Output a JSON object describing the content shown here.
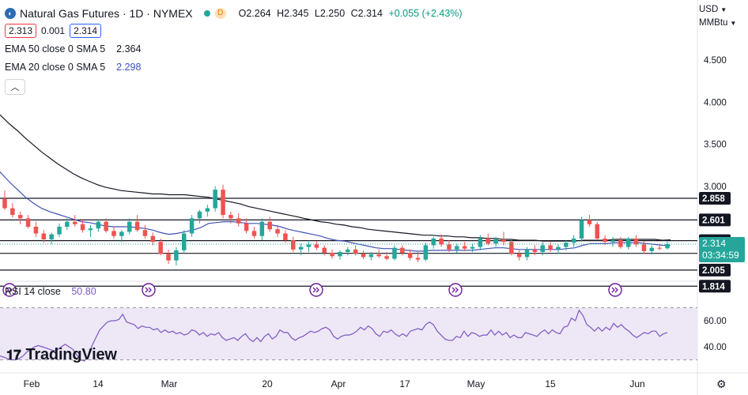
{
  "header": {
    "title": "Natural Gas Futures · 1D · NYMEX",
    "delay_badge": "D",
    "ohlc": {
      "o": "O2.264",
      "h": "H2.345",
      "l": "L2.250",
      "c": "C2.314",
      "chg": "+0.055 (+2.43%)"
    },
    "bid": "2.313",
    "spread": "0.001",
    "ask": "2.314"
  },
  "indicators": {
    "ema50": {
      "label": "EMA 50 close 0 SMA 5",
      "value": "2.364"
    },
    "ema20": {
      "label": "EMA 20 close 0 SMA 5",
      "value": "2.298"
    },
    "rsi": {
      "label": "RSI 14 close",
      "value": "50.80"
    }
  },
  "axis": {
    "currency": "USD",
    "unit": "MMBtu",
    "price_ticks": [
      "4.500",
      "4.000",
      "3.500",
      "3.000"
    ],
    "rsi_ticks": [
      "60.00",
      "40.00"
    ],
    "x_ticks": [
      "Feb",
      "14",
      "Mar",
      "20",
      "Apr",
      "17",
      "May",
      "15",
      "Jun"
    ]
  },
  "levels": [
    "2.858",
    "2.601",
    "2.355",
    "2.204",
    "2.005",
    "1.814"
  ],
  "price_tag": {
    "price": "2.314",
    "countdown": "03:34:59"
  },
  "brand": "TradingView",
  "colors": {
    "up": "#26a69a",
    "down": "#ef5350",
    "ema50": "#131722",
    "ema20": "#3f51b5",
    "rsi": "#7e57c2",
    "rsi_band": "#ede7f6",
    "price_tag": "#26a69a"
  },
  "chart_data": {
    "type": "candlestick",
    "title": "Natural Gas Futures · 1D · NYMEX",
    "ylim": [
      1.814,
      4.8
    ],
    "horizontal_levels": [
      2.858,
      2.601,
      2.355,
      2.204,
      2.005,
      1.814
    ],
    "last": {
      "open": 2.264,
      "high": 2.345,
      "low": 2.25,
      "close": 2.314,
      "change": 0.055,
      "change_pct": 2.43
    },
    "candles": [
      [
        2.85,
        2.95,
        2.72,
        2.74
      ],
      [
        2.74,
        2.8,
        2.63,
        2.66
      ],
      [
        2.66,
        2.7,
        2.55,
        2.62
      ],
      [
        2.62,
        2.66,
        2.5,
        2.52
      ],
      [
        2.52,
        2.58,
        2.4,
        2.44
      ],
      [
        2.44,
        2.48,
        2.33,
        2.37
      ],
      [
        2.37,
        2.45,
        2.31,
        2.43
      ],
      [
        2.43,
        2.56,
        2.4,
        2.52
      ],
      [
        2.52,
        2.62,
        2.48,
        2.58
      ],
      [
        2.58,
        2.66,
        2.52,
        2.55
      ],
      [
        2.55,
        2.6,
        2.45,
        2.48
      ],
      [
        2.48,
        2.54,
        2.4,
        2.5
      ],
      [
        2.5,
        2.6,
        2.46,
        2.58
      ],
      [
        2.58,
        2.62,
        2.45,
        2.47
      ],
      [
        2.47,
        2.52,
        2.38,
        2.41
      ],
      [
        2.41,
        2.48,
        2.34,
        2.46
      ],
      [
        2.46,
        2.62,
        2.43,
        2.58
      ],
      [
        2.58,
        2.66,
        2.46,
        2.48
      ],
      [
        2.48,
        2.54,
        2.38,
        2.41
      ],
      [
        2.41,
        2.45,
        2.3,
        2.34
      ],
      [
        2.34,
        2.38,
        2.18,
        2.2
      ],
      [
        2.2,
        2.25,
        2.08,
        2.12
      ],
      [
        2.12,
        2.28,
        2.06,
        2.24
      ],
      [
        2.24,
        2.48,
        2.2,
        2.44
      ],
      [
        2.44,
        2.66,
        2.4,
        2.62
      ],
      [
        2.62,
        2.72,
        2.56,
        2.7
      ],
      [
        2.7,
        2.78,
        2.64,
        2.74
      ],
      [
        2.74,
        3.0,
        2.7,
        2.96
      ],
      [
        2.96,
        3.02,
        2.62,
        2.66
      ],
      [
        2.66,
        2.7,
        2.56,
        2.62
      ],
      [
        2.62,
        2.68,
        2.52,
        2.56
      ],
      [
        2.56,
        2.62,
        2.44,
        2.47
      ],
      [
        2.47,
        2.52,
        2.38,
        2.41
      ],
      [
        2.41,
        2.62,
        2.36,
        2.58
      ],
      [
        2.58,
        2.64,
        2.46,
        2.49
      ],
      [
        2.49,
        2.54,
        2.4,
        2.44
      ],
      [
        2.44,
        2.48,
        2.33,
        2.36
      ],
      [
        2.36,
        2.4,
        2.22,
        2.25
      ],
      [
        2.25,
        2.32,
        2.18,
        2.28
      ],
      [
        2.28,
        2.34,
        2.22,
        2.31
      ],
      [
        2.31,
        2.35,
        2.24,
        2.27
      ],
      [
        2.27,
        2.3,
        2.18,
        2.21
      ],
      [
        2.21,
        2.25,
        2.14,
        2.17
      ],
      [
        2.17,
        2.24,
        2.13,
        2.22
      ],
      [
        2.22,
        2.28,
        2.18,
        2.25
      ],
      [
        2.25,
        2.3,
        2.18,
        2.2
      ],
      [
        2.2,
        2.24,
        2.14,
        2.16
      ],
      [
        2.16,
        2.22,
        2.12,
        2.19
      ],
      [
        2.19,
        2.25,
        2.15,
        2.17
      ],
      [
        2.17,
        2.22,
        2.12,
        2.14
      ],
      [
        2.14,
        2.3,
        2.12,
        2.27
      ],
      [
        2.27,
        2.3,
        2.18,
        2.21
      ],
      [
        2.21,
        2.25,
        2.12,
        2.15
      ],
      [
        2.15,
        2.22,
        2.1,
        2.13
      ],
      [
        2.13,
        2.33,
        2.11,
        2.3
      ],
      [
        2.3,
        2.4,
        2.26,
        2.38
      ],
      [
        2.38,
        2.43,
        2.28,
        2.31
      ],
      [
        2.31,
        2.36,
        2.22,
        2.25
      ],
      [
        2.25,
        2.32,
        2.21,
        2.29
      ],
      [
        2.29,
        2.34,
        2.23,
        2.26
      ],
      [
        2.26,
        2.31,
        2.22,
        2.28
      ],
      [
        2.28,
        2.42,
        2.24,
        2.38
      ],
      [
        2.38,
        2.44,
        2.3,
        2.32
      ],
      [
        2.32,
        2.4,
        2.28,
        2.37
      ],
      [
        2.37,
        2.46,
        2.3,
        2.34
      ],
      [
        2.34,
        2.36,
        2.18,
        2.2
      ],
      [
        2.2,
        2.24,
        2.12,
        2.16
      ],
      [
        2.16,
        2.28,
        2.12,
        2.25
      ],
      [
        2.25,
        2.3,
        2.18,
        2.22
      ],
      [
        2.22,
        2.34,
        2.18,
        2.3
      ],
      [
        2.3,
        2.34,
        2.22,
        2.25
      ],
      [
        2.25,
        2.31,
        2.2,
        2.28
      ],
      [
        2.28,
        2.36,
        2.24,
        2.33
      ],
      [
        2.33,
        2.42,
        2.28,
        2.38
      ],
      [
        2.38,
        2.64,
        2.34,
        2.6
      ],
      [
        2.6,
        2.66,
        2.52,
        2.55
      ],
      [
        2.55,
        2.58,
        2.36,
        2.38
      ],
      [
        2.38,
        2.42,
        2.3,
        2.34
      ],
      [
        2.34,
        2.4,
        2.28,
        2.36
      ],
      [
        2.36,
        2.4,
        2.26,
        2.28
      ],
      [
        2.28,
        2.4,
        2.25,
        2.38
      ],
      [
        2.38,
        2.42,
        2.28,
        2.31
      ],
      [
        2.31,
        2.35,
        2.2,
        2.23
      ],
      [
        2.23,
        2.3,
        2.19,
        2.27
      ],
      [
        2.27,
        2.32,
        2.24,
        2.26
      ],
      [
        2.264,
        2.345,
        2.25,
        2.314
      ]
    ],
    "rsi": {
      "series_name": "RSI 14 close",
      "ylim": [
        20,
        75
      ],
      "upper": 70,
      "lower": 30,
      "values": [
        33,
        32,
        31,
        30,
        30,
        31,
        33,
        36,
        38,
        40,
        41,
        40,
        39,
        38,
        37,
        38,
        40,
        42,
        40,
        38,
        34,
        30,
        29,
        33,
        41,
        47,
        53,
        56,
        59,
        60,
        60,
        61,
        65,
        59,
        58,
        57,
        54,
        56,
        55,
        55,
        53,
        54,
        51,
        53,
        51,
        52,
        50,
        51,
        49,
        50,
        53,
        52,
        49,
        51,
        48,
        50,
        49,
        51,
        47,
        45,
        46,
        47,
        45,
        48,
        50,
        46,
        44,
        47,
        44,
        48,
        50,
        46,
        48,
        53,
        51,
        51,
        47,
        45,
        47,
        48,
        50,
        52,
        51,
        52,
        54,
        55,
        53,
        48,
        46,
        48,
        49,
        49,
        50,
        52,
        55,
        53,
        56,
        54,
        50,
        48,
        52,
        51,
        53,
        50,
        48,
        50,
        48,
        52,
        53,
        54,
        53,
        57,
        59,
        57,
        52,
        49,
        46,
        45,
        45,
        48,
        47,
        52,
        48,
        51,
        50,
        48,
        49,
        49,
        53,
        49,
        52,
        49,
        51,
        47,
        49,
        47,
        47,
        51,
        50,
        49,
        48,
        51,
        53,
        50,
        53,
        51,
        50,
        55,
        56,
        62,
        60,
        68,
        64,
        57,
        55,
        52,
        55,
        52,
        55,
        53,
        58,
        55,
        57,
        54,
        52,
        49,
        47,
        49,
        51,
        50,
        52,
        52,
        48,
        50,
        51
      ]
    },
    "ema50": [
      3.92,
      3.83,
      3.74,
      3.66,
      3.57,
      3.49,
      3.41,
      3.34,
      3.27,
      3.21,
      3.15,
      3.1,
      3.06,
      3.02,
      2.99,
      2.97,
      2.95,
      2.94,
      2.93,
      2.92,
      2.91,
      2.91,
      2.9,
      2.9,
      2.9,
      2.89,
      2.88,
      2.87,
      2.85,
      2.83,
      2.81,
      2.79,
      2.76,
      2.74,
      2.72,
      2.7,
      2.68,
      2.66,
      2.64,
      2.62,
      2.6,
      2.58,
      2.57,
      2.55,
      2.54,
      2.52,
      2.51,
      2.49,
      2.48,
      2.47,
      2.46,
      2.45,
      2.44,
      2.43,
      2.42,
      2.42,
      2.41,
      2.41,
      2.4,
      2.4,
      2.39,
      2.39,
      2.38,
      2.38,
      2.37,
      2.37,
      2.36,
      2.36,
      2.36,
      2.35,
      2.35,
      2.35,
      2.35,
      2.35,
      2.36,
      2.36,
      2.36,
      2.36,
      2.37,
      2.37,
      2.37,
      2.37,
      2.37,
      2.37,
      2.36,
      2.364
    ],
    "ema20": [
      3.25,
      3.15,
      3.05,
      2.96,
      2.87,
      2.8,
      2.74,
      2.7,
      2.67,
      2.64,
      2.61,
      2.58,
      2.57,
      2.55,
      2.53,
      2.52,
      2.52,
      2.52,
      2.51,
      2.5,
      2.48,
      2.45,
      2.43,
      2.44,
      2.46,
      2.48,
      2.51,
      2.56,
      2.57,
      2.58,
      2.58,
      2.57,
      2.56,
      2.56,
      2.55,
      2.54,
      2.52,
      2.49,
      2.47,
      2.45,
      2.43,
      2.41,
      2.38,
      2.36,
      2.35,
      2.33,
      2.31,
      2.29,
      2.27,
      2.26,
      2.26,
      2.25,
      2.24,
      2.23,
      2.23,
      2.24,
      2.24,
      2.24,
      2.24,
      2.24,
      2.24,
      2.25,
      2.26,
      2.27,
      2.27,
      2.26,
      2.25,
      2.25,
      2.25,
      2.25,
      2.25,
      2.25,
      2.26,
      2.27,
      2.3,
      2.32,
      2.32,
      2.32,
      2.33,
      2.33,
      2.33,
      2.33,
      2.32,
      2.31,
      2.3,
      2.298
    ]
  }
}
